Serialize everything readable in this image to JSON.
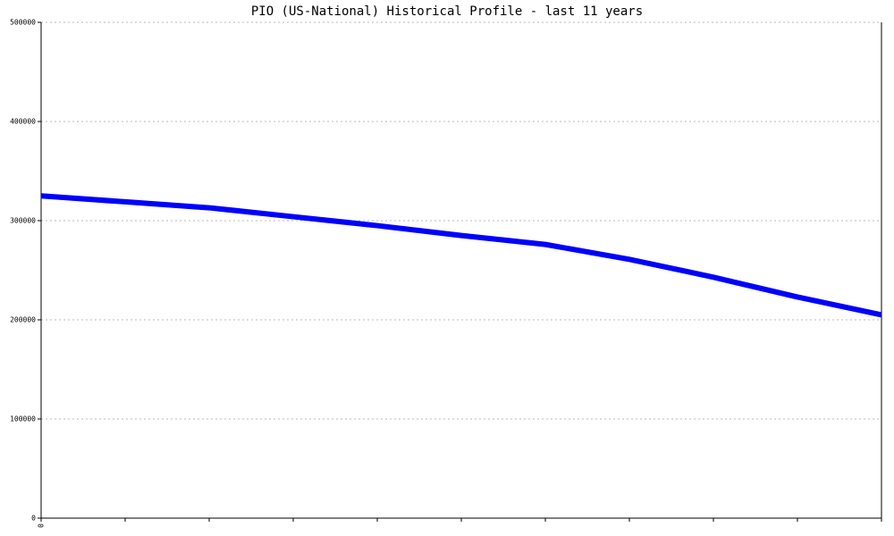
{
  "chart_data": {
    "type": "line",
    "title": "PIO (US-National) Historical Profile - last 11 years",
    "categories": [
      "0",
      null,
      null,
      null,
      null,
      null,
      null,
      null,
      null,
      null,
      null
    ],
    "series": [
      {
        "color": "#0000ff",
        "values": [
          325000,
          319000,
          313000,
          304000,
          295000,
          285000,
          276000,
          261000,
          243000,
          223000,
          205000
        ]
      }
    ],
    "ylim": [
      0,
      500000
    ],
    "yticks": [
      0,
      100000,
      200000,
      300000,
      400000,
      500000
    ],
    "grid": true
  }
}
